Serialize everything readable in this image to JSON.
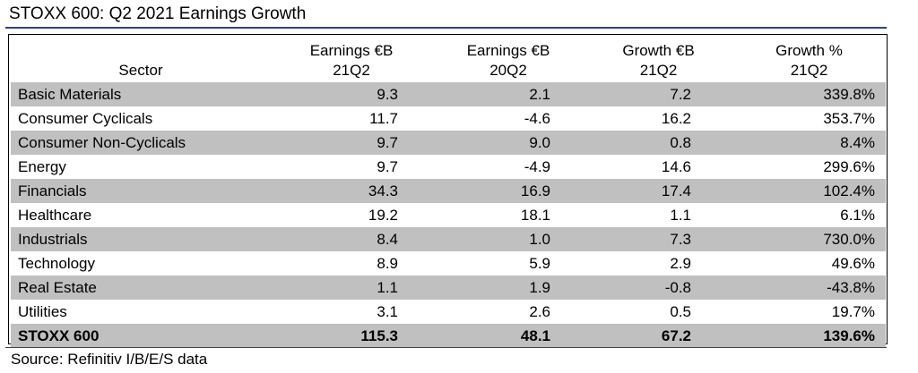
{
  "title": "STOXX 600: Q2 2021 Earnings Growth",
  "headers": [
    {
      "line1": "",
      "line2": "Sector"
    },
    {
      "line1": "Earnings €B",
      "line2": "21Q2"
    },
    {
      "line1": "Earnings €B",
      "line2": "20Q2"
    },
    {
      "line1": "Growth €B",
      "line2": "21Q2"
    },
    {
      "line1": "Growth %",
      "line2": "21Q2"
    }
  ],
  "rows": [
    {
      "sector": "Basic Materials",
      "e21": "9.3",
      "e20": "2.1",
      "g": "7.2",
      "gp": "339.8%"
    },
    {
      "sector": "Consumer Cyclicals",
      "e21": "11.7",
      "e20": "-4.6",
      "g": "16.2",
      "gp": "353.7%"
    },
    {
      "sector": "Consumer Non-Cyclicals",
      "e21": "9.7",
      "e20": "9.0",
      "g": "0.8",
      "gp": "8.4%"
    },
    {
      "sector": "Energy",
      "e21": "9.7",
      "e20": "-4.9",
      "g": "14.6",
      "gp": "299.6%"
    },
    {
      "sector": "Financials",
      "e21": "34.3",
      "e20": "16.9",
      "g": "17.4",
      "gp": "102.4%"
    },
    {
      "sector": "Healthcare",
      "e21": "19.2",
      "e20": "18.1",
      "g": "1.1",
      "gp": "6.1%"
    },
    {
      "sector": "Industrials",
      "e21": "8.4",
      "e20": "1.0",
      "g": "7.3",
      "gp": "730.0%"
    },
    {
      "sector": "Technology",
      "e21": "8.9",
      "e20": "5.9",
      "g": "2.9",
      "gp": "49.6%"
    },
    {
      "sector": "Real Estate",
      "e21": "1.1",
      "e20": "1.9",
      "g": "-0.8",
      "gp": "-43.8%"
    },
    {
      "sector": "Utilities",
      "e21": "3.1",
      "e20": "2.6",
      "g": "0.5",
      "gp": "19.7%"
    }
  ],
  "total": {
    "sector": "STOXX 600",
    "e21": "115.3",
    "e20": "48.1",
    "g": "67.2",
    "gp": "139.6%"
  },
  "source": "Source: Refinitiv I/B/E/S data"
}
